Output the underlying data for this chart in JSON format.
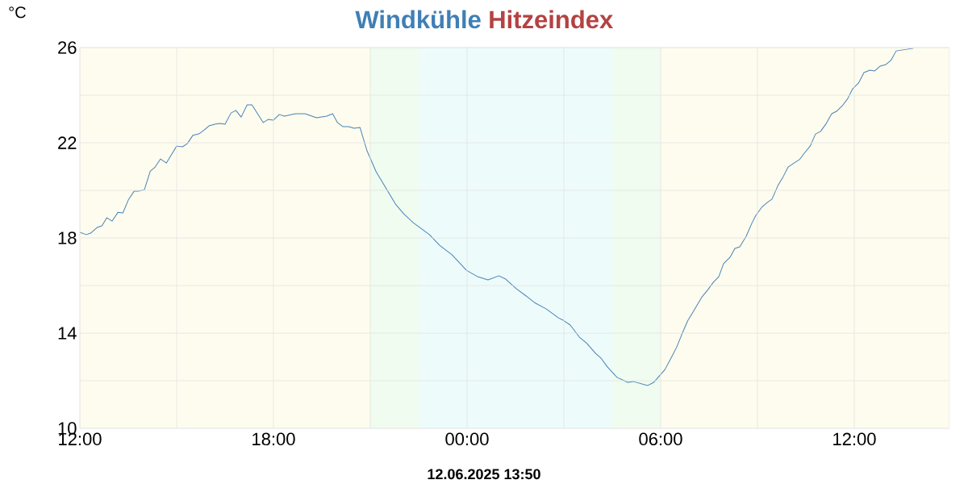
{
  "chart_data": {
    "type": "line",
    "title": "Windkühle",
    "subtitle": "Hitzeindex",
    "ylabel": "°C",
    "annotations": [
      "12.06.2025 13:50"
    ],
    "x": [
      "2025-06-11T12:00",
      "2025-06-11T12:12",
      "2025-06-11T12:20",
      "2025-06-11T12:32",
      "2025-06-11T12:41",
      "2025-06-11T12:50",
      "2025-06-11T13:00",
      "2025-06-11T13:11",
      "2025-06-11T13:20",
      "2025-06-11T13:30",
      "2025-06-11T13:41",
      "2025-06-11T13:50",
      "2025-06-11T14:00",
      "2025-06-11T14:11",
      "2025-06-11T14:20",
      "2025-06-11T14:30",
      "2025-06-11T14:41",
      "2025-06-11T14:50",
      "2025-06-11T15:00",
      "2025-06-11T15:11",
      "2025-06-11T15:20",
      "2025-06-11T15:30",
      "2025-06-11T15:41",
      "2025-06-11T15:50",
      "2025-06-11T16:00",
      "2025-06-11T16:11",
      "2025-06-11T16:20",
      "2025-06-11T16:30",
      "2025-06-11T16:41",
      "2025-06-11T16:50",
      "2025-06-11T17:00",
      "2025-06-11T17:11",
      "2025-06-11T17:20",
      "2025-06-11T17:41",
      "2025-06-11T17:50",
      "2025-06-11T18:00",
      "2025-06-11T18:11",
      "2025-06-11T18:20",
      "2025-06-11T18:41",
      "2025-06-11T18:59",
      "2025-06-11T19:20",
      "2025-06-11T19:39",
      "2025-06-11T19:50",
      "2025-06-11T19:59",
      "2025-06-11T20:09",
      "2025-06-11T20:20",
      "2025-06-11T20:30",
      "2025-06-11T20:41",
      "2025-06-11T20:54",
      "2025-06-11T21:11",
      "2025-06-11T21:29",
      "2025-06-11T21:47",
      "2025-06-11T22:02",
      "2025-06-11T22:20",
      "2025-06-11T22:50",
      "2025-06-11T23:09",
      "2025-06-11T23:32",
      "2025-06-11T23:59",
      "2025-06-12T00:20",
      "2025-06-12T00:39",
      "2025-06-12T00:59",
      "2025-06-12T01:12",
      "2025-06-12T01:32",
      "2025-06-12T01:50",
      "2025-06-12T02:05",
      "2025-06-12T02:27",
      "2025-06-12T02:50",
      "2025-06-12T02:59",
      "2025-06-12T03:12",
      "2025-06-12T03:29",
      "2025-06-12T03:42",
      "2025-06-12T03:59",
      "2025-06-12T04:09",
      "2025-06-12T04:21",
      "2025-06-12T04:39",
      "2025-06-12T04:59",
      "2025-06-12T05:09",
      "2025-06-12T05:36",
      "2025-06-12T05:47",
      "2025-06-12T06:08",
      "2025-06-12T06:20",
      "2025-06-12T06:30",
      "2025-06-12T06:39",
      "2025-06-12T06:50",
      "2025-06-12T07:00",
      "2025-06-12T07:17",
      "2025-06-12T07:27",
      "2025-06-12T07:38",
      "2025-06-12T07:48",
      "2025-06-12T07:57",
      "2025-06-12T08:09",
      "2025-06-12T08:18",
      "2025-06-12T08:27",
      "2025-06-12T08:39",
      "2025-06-12T08:50",
      "2025-06-12T08:57",
      "2025-06-12T09:08",
      "2025-06-12T09:18",
      "2025-06-12T09:27",
      "2025-06-12T09:38",
      "2025-06-12T09:48",
      "2025-06-12T09:57",
      "2025-06-12T10:08",
      "2025-06-12T10:18",
      "2025-06-12T10:27",
      "2025-06-12T10:38",
      "2025-06-12T10:48",
      "2025-06-12T10:57",
      "2025-06-12T11:08",
      "2025-06-12T11:18",
      "2025-06-12T11:27",
      "2025-06-12T11:38",
      "2025-06-12T11:48",
      "2025-06-12T11:57",
      "2025-06-12T12:08",
      "2025-06-12T12:18",
      "2025-06-12T12:29",
      "2025-06-12T12:38",
      "2025-06-12T12:48",
      "2025-06-12T12:59",
      "2025-06-12T13:08",
      "2025-06-12T13:18",
      "2025-06-12T13:50"
    ],
    "series": [
      {
        "name": null,
        "color": "#4a82b8",
        "values": [
          18.24,
          18.14,
          18.2,
          18.44,
          18.51,
          18.85,
          18.71,
          19.08,
          19.05,
          19.59,
          19.97,
          19.97,
          20.03,
          20.81,
          20.98,
          21.32,
          21.15,
          21.49,
          21.86,
          21.83,
          21.97,
          22.31,
          22.37,
          22.51,
          22.71,
          22.78,
          22.81,
          22.78,
          23.25,
          23.36,
          23.08,
          23.59,
          23.59,
          22.85,
          22.98,
          22.95,
          23.19,
          23.12,
          23.22,
          23.22,
          23.05,
          23.12,
          23.22,
          22.85,
          22.68,
          22.68,
          22.61,
          22.64,
          21.66,
          20.78,
          20.1,
          19.42,
          19.02,
          18.64,
          18.14,
          17.69,
          17.29,
          16.64,
          16.37,
          16.24,
          16.41,
          16.27,
          15.86,
          15.56,
          15.29,
          15.02,
          14.64,
          14.54,
          14.34,
          13.83,
          13.59,
          13.15,
          12.95,
          12.58,
          12.14,
          11.93,
          11.97,
          11.8,
          11.93,
          12.47,
          12.98,
          13.42,
          13.93,
          14.51,
          14.88,
          15.53,
          15.8,
          16.14,
          16.37,
          16.92,
          17.19,
          17.56,
          17.63,
          18.07,
          18.64,
          18.95,
          19.29,
          19.49,
          19.63,
          20.2,
          20.58,
          20.98,
          21.15,
          21.29,
          21.56,
          21.86,
          22.37,
          22.47,
          22.81,
          23.22,
          23.32,
          23.56,
          23.86,
          24.27,
          24.51,
          24.95,
          25.05,
          25.02,
          25.22,
          25.29,
          25.46,
          25.86,
          25.97
        ]
      }
    ],
    "xlim": [
      "2025-06-11T12:00",
      "2025-06-12T14:57"
    ],
    "ylim": [
      10,
      26
    ],
    "xticks": [
      {
        "value": "2025-06-11T12:00",
        "label": "12:00"
      },
      {
        "value": "2025-06-11T15:00",
        "label": null
      },
      {
        "value": "2025-06-11T18:00",
        "label": "18:00"
      },
      {
        "value": "2025-06-11T21:00",
        "label": null
      },
      {
        "value": "2025-06-12T00:00",
        "label": "00:00"
      },
      {
        "value": "2025-06-12T03:00",
        "label": null
      },
      {
        "value": "2025-06-12T06:00",
        "label": "06:00"
      },
      {
        "value": "2025-06-12T09:00",
        "label": null
      },
      {
        "value": "2025-06-12T12:00",
        "label": "12:00"
      }
    ],
    "yticks": [
      10,
      {
        "value": 12,
        "label": null
      },
      14,
      {
        "value": 16,
        "label": null
      },
      18,
      {
        "value": 20,
        "label": null
      },
      22,
      {
        "value": 24,
        "label": null
      },
      26
    ],
    "bands": [
      {
        "axis": "x",
        "from": "2025-06-11T12:00",
        "to": "2025-06-11T21:00",
        "color": "#fdfcee"
      },
      {
        "axis": "x",
        "from": "2025-06-11T21:00",
        "to": "2025-06-11T22:30",
        "color": "#effcef"
      },
      {
        "axis": "x",
        "from": "2025-06-11T22:30",
        "to": "2025-06-12T04:30",
        "color": "#edfbfb"
      },
      {
        "axis": "x",
        "from": "2025-06-12T04:30",
        "to": "2025-06-12T06:00",
        "color": "#effcef"
      },
      {
        "axis": "x",
        "from": "2025-06-12T06:00",
        "to": "2025-06-12T14:57",
        "color": "#fdfcee"
      }
    ],
    "grid": true
  }
}
